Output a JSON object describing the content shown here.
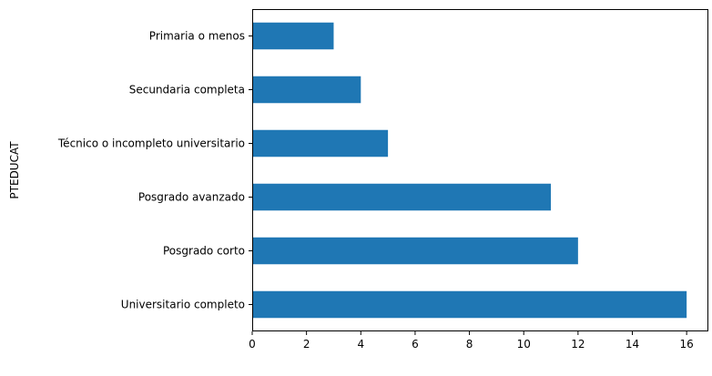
{
  "chart_data": {
    "type": "bar",
    "orientation": "horizontal",
    "ylabel": "PTEDUCAT",
    "xlabel": "",
    "title": "",
    "categories": [
      "Primaria o menos",
      "Secundaria completa",
      "Técnico o incompleto universitario",
      "Posgrado avanzado",
      "Posgrado corto",
      "Universitario completo"
    ],
    "values": [
      3,
      4,
      5,
      11,
      12,
      16
    ],
    "xlim": [
      0,
      16.8
    ],
    "xticks": [
      "0",
      "2",
      "4",
      "6",
      "8",
      "10",
      "12",
      "14",
      "16"
    ],
    "grid": false,
    "bar_color": "#1f77b4"
  }
}
